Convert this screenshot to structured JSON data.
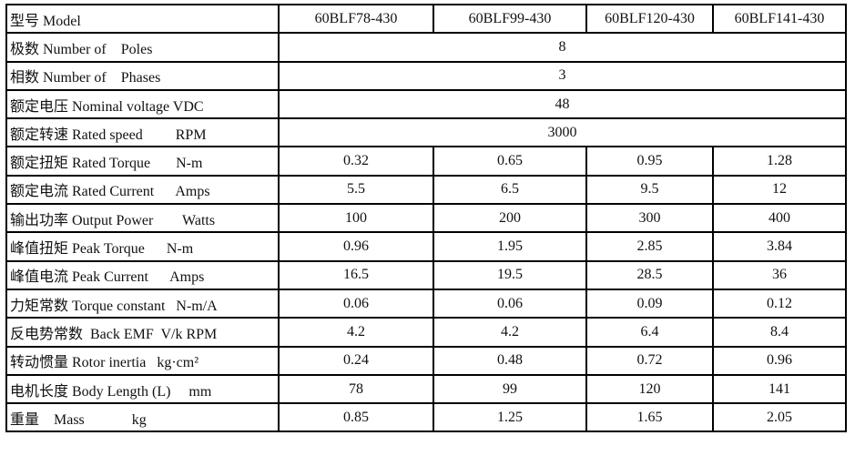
{
  "header": {
    "label": "型号 Model",
    "models": [
      "60BLF78-430",
      "60BLF99-430",
      "60BLF120-430",
      "60BLF141-430"
    ]
  },
  "rows": [
    {
      "label": "极数 Number of    Poles",
      "values": [
        "8"
      ]
    },
    {
      "label": "相数 Number of    Phases",
      "values": [
        "3"
      ]
    },
    {
      "label": "额定电压 Nominal voltage VDC",
      "values": [
        "48"
      ]
    },
    {
      "label": "额定转速 Rated speed         RPM",
      "values": [
        "3000"
      ]
    },
    {
      "label": "额定扭矩 Rated Torque       N-m",
      "values": [
        "0.32",
        "0.65",
        "0.95",
        "1.28"
      ]
    },
    {
      "label": "额定电流 Rated Current      Amps",
      "values": [
        "5.5",
        "6.5",
        "9.5",
        "12"
      ]
    },
    {
      "label": "输出功率 Output Power        Watts",
      "values": [
        "100",
        "200",
        "300",
        "400"
      ]
    },
    {
      "label": "峰值扭矩 Peak Torque      N-m",
      "values": [
        "0.96",
        "1.95",
        "2.85",
        "3.84"
      ]
    },
    {
      "label": "峰值电流 Peak Current      Amps",
      "values": [
        "16.5",
        "19.5",
        "28.5",
        "36"
      ]
    },
    {
      "label": "力矩常数 Torque constant   N-m/A",
      "values": [
        "0.06",
        "0.06",
        "0.09",
        "0.12"
      ]
    },
    {
      "label": "反电势常数  Back EMF  V/k RPM",
      "values": [
        "4.2",
        "4.2",
        "6.4",
        "8.4"
      ]
    },
    {
      "label": "转动惯量 Rotor inertia   kg·cm²",
      "values": [
        "0.24",
        "0.48",
        "0.72",
        "0.96"
      ]
    },
    {
      "label": "电机长度 Body Length (L)     mm",
      "values": [
        "78",
        "99",
        "120",
        "141"
      ]
    },
    {
      "label": "重量    Mass             kg",
      "values": [
        "0.85",
        "1.25",
        "1.65",
        "2.05"
      ]
    }
  ]
}
